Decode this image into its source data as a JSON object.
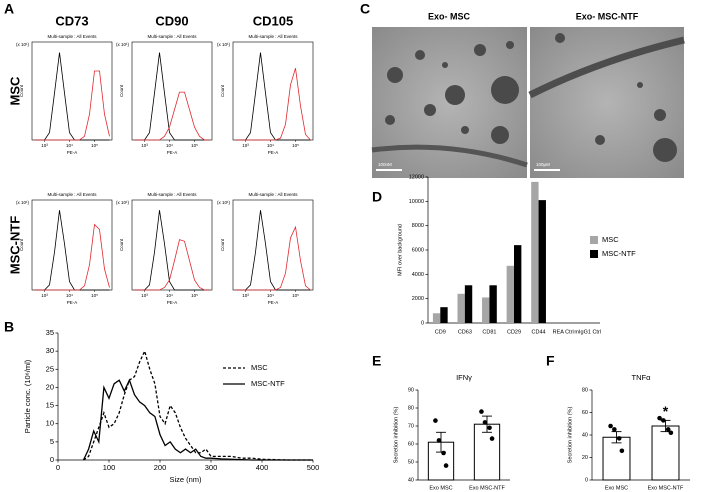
{
  "chart_data": [
    {
      "type": "flow-grid",
      "panel_label": "A",
      "columns": [
        "CD73",
        "CD90",
        "CD105"
      ],
      "rows": [
        "MSC",
        "MSC-NTF"
      ],
      "plot_title": "Multi-sample : All Events",
      "ylabel": "Count",
      "xlabel": "PE-A",
      "y_multiplier": "(x 10¹)",
      "x": [
        2.6,
        2.8,
        3.0,
        3.2,
        3.4,
        3.6,
        3.8,
        4.0,
        4.2,
        4.4,
        4.6,
        4.8,
        5.0,
        5.2,
        5.4,
        5.6
      ],
      "xlim": [
        2.5,
        5.7
      ],
      "xticks": [
        {
          "value": 3,
          "label": "10³"
        },
        {
          "value": 4,
          "label": "10⁴"
        },
        {
          "value": 5,
          "label": "10⁵"
        }
      ],
      "ylim": [
        0,
        100
      ],
      "plots": [
        {
          "series": [
            {
              "color": "#000000",
              "values": [
                0,
                0,
                0,
                8,
                51,
                95,
                51,
                8,
                0,
                0,
                0,
                0,
                0,
                0,
                0,
                0
              ]
            },
            {
              "color": "#e0282e",
              "values": [
                0,
                0,
                0,
                0,
                0,
                0,
                0,
                0,
                0,
                0,
                4,
                28,
                75,
                75,
                28,
                4
              ]
            }
          ]
        },
        {
          "series": [
            {
              "color": "#000000",
              "values": [
                0,
                0,
                0,
                8,
                51,
                95,
                51,
                8,
                0,
                0,
                0,
                0,
                0,
                0,
                0,
                0
              ]
            },
            {
              "color": "#e0282e",
              "values": [
                0,
                0,
                0,
                0,
                0,
                0,
                4,
                14,
                33,
                52,
                52,
                33,
                14,
                4,
                0,
                0
              ]
            }
          ]
        },
        {
          "series": [
            {
              "color": "#000000",
              "values": [
                0,
                0,
                0,
                8,
                51,
                95,
                51,
                8,
                0,
                0,
                0,
                0,
                0,
                0,
                0,
                0
              ]
            },
            {
              "color": "#e0282e",
              "values": [
                0,
                0,
                0,
                0,
                0,
                0,
                0,
                0,
                0,
                2,
                17,
                60,
                78,
                37,
                6,
                0
              ]
            }
          ]
        },
        {
          "series": [
            {
              "color": "#000000",
              "values": [
                0,
                0,
                0,
                6,
                45,
                95,
                55,
                10,
                0,
                0,
                0,
                0,
                0,
                0,
                0,
                0
              ]
            },
            {
              "color": "#e0282e",
              "values": [
                0,
                0,
                0,
                0,
                0,
                0,
                0,
                0,
                0,
                0,
                5,
                30,
                78,
                72,
                25,
                3
              ]
            }
          ]
        },
        {
          "series": [
            {
              "color": "#000000",
              "values": [
                0,
                0,
                0,
                6,
                45,
                95,
                55,
                10,
                0,
                0,
                0,
                0,
                0,
                0,
                0,
                0
              ]
            },
            {
              "color": "#e0282e",
              "values": [
                0,
                0,
                0,
                0,
                0,
                0,
                3,
                12,
                35,
                60,
                58,
                35,
                12,
                3,
                0,
                0
              ]
            }
          ]
        },
        {
          "series": [
            {
              "color": "#000000",
              "values": [
                0,
                0,
                0,
                6,
                45,
                95,
                55,
                10,
                0,
                0,
                0,
                0,
                0,
                0,
                0,
                0
              ]
            },
            {
              "color": "#e0282e",
              "values": [
                0,
                0,
                0,
                0,
                0,
                0,
                0,
                0,
                0,
                3,
                20,
                62,
                75,
                35,
                5,
                0
              ]
            }
          ]
        }
      ]
    },
    {
      "type": "line",
      "panel_label": "B",
      "xlabel": "Size (nm)",
      "ylabel": "Particle conc. (10⁶/ml)",
      "x": [
        50,
        60,
        70,
        80,
        90,
        100,
        110,
        120,
        130,
        140,
        150,
        160,
        170,
        180,
        190,
        200,
        210,
        220,
        230,
        240,
        250,
        260,
        270,
        280,
        290,
        300,
        320,
        340,
        360,
        380,
        400,
        450,
        500
      ],
      "series": [
        {
          "name": "MSC",
          "color": "#000000",
          "style": "dashed",
          "values": [
            0,
            1,
            5,
            9,
            13,
            9,
            10,
            13,
            18,
            22,
            23,
            27,
            30,
            25,
            21,
            12,
            10,
            15,
            13,
            9,
            6,
            4,
            2,
            2,
            3,
            1,
            1,
            1,
            0.5,
            0.5,
            0.2,
            0,
            0
          ]
        },
        {
          "name": "MSC-NTF",
          "color": "#000000",
          "style": "solid",
          "values": [
            0,
            3,
            8,
            5,
            20,
            17,
            21,
            22,
            19,
            22,
            18,
            16,
            15,
            13,
            12,
            7,
            4,
            5,
            3,
            2,
            3,
            2,
            3,
            1,
            0.5,
            0.5,
            0.3,
            0.2,
            0.1,
            0,
            0,
            0,
            0
          ]
        }
      ],
      "xlim": [
        0,
        500
      ],
      "xticks": [
        0,
        100,
        200,
        300,
        400,
        500
      ],
      "ylim": [
        0,
        35
      ],
      "yticks": [
        0,
        5,
        10,
        15,
        20,
        25,
        30,
        35
      ],
      "legend": "upper right"
    },
    {
      "type": "grouped-bar",
      "panel_label": "D",
      "ylabel": "MFI over background",
      "categories": [
        "CD9",
        "CD63",
        "CD81",
        "CD29",
        "CD44",
        "REA Ctrl",
        "mIgG1 Ctrl"
      ],
      "series": [
        {
          "name": "MSC",
          "color": "#a6a6a6",
          "values": [
            800,
            2400,
            2100,
            4700,
            11600,
            0,
            0
          ]
        },
        {
          "name": "MSC-NTF",
          "color": "#000000",
          "values": [
            1300,
            3100,
            3100,
            6400,
            10100,
            0,
            0
          ]
        }
      ],
      "ylim": [
        0,
        12000
      ],
      "yticks": [
        0,
        2000,
        4000,
        6000,
        8000,
        10000,
        12000
      ],
      "legend": "right"
    },
    {
      "type": "dot-bar",
      "panel_label": "E",
      "title": "IFNγ",
      "ylabel": "Secretion inhibition (%)",
      "categories": [
        "Exo MSC",
        "Exo MSC-NTF"
      ],
      "values": [
        61,
        71
      ],
      "errors": [
        5.5,
        4.5
      ],
      "points": [
        [
          73,
          62,
          55,
          48
        ],
        [
          78,
          72,
          69,
          63
        ]
      ],
      "ylim": [
        40,
        90
      ],
      "yticks": [
        40,
        50,
        60,
        70,
        80,
        90
      ]
    },
    {
      "type": "dot-bar",
      "panel_label": "F",
      "title": "TNFα",
      "ylabel": "Secretion inhibition (%)",
      "categories": [
        "Exo MSC",
        "Exo MSC-NTF"
      ],
      "values": [
        38,
        48
      ],
      "errors": [
        5,
        5
      ],
      "points": [
        [
          48,
          45,
          37,
          26
        ],
        [
          55,
          53,
          45,
          42
        ]
      ],
      "ylim": [
        0,
        80
      ],
      "yticks": [
        0,
        20,
        40,
        60,
        80
      ],
      "annotations": [
        {
          "text": "*",
          "category": 1
        }
      ]
    }
  ],
  "image_panel": {
    "panel_label": "C",
    "images": [
      {
        "title": "Exo- MSC",
        "scale_bar": "100nM"
      },
      {
        "title": "Exo- MSC-NTF",
        "scale_bar": "100μM"
      }
    ]
  }
}
